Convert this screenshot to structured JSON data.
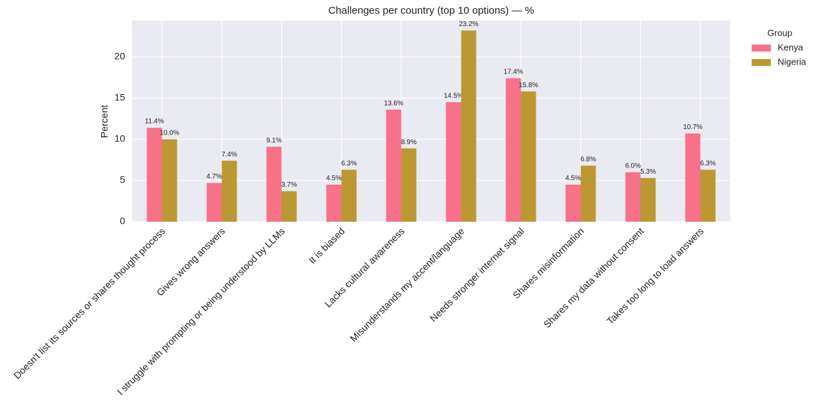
{
  "chart_data": {
    "type": "bar",
    "title": "Challenges per country (top 10 options) — %",
    "ylabel": "Percent",
    "categories": [
      "Doesn't list its sources or shares thought process",
      "Gives wrong answers",
      "I struggle with prompting or being understood by LLMs",
      "It is biased",
      "Lacks cultural awareness",
      "Misunderstands my accent/language",
      "Needs stronger internet signal",
      "Shares misinformation",
      "Shares my data without consent",
      "Takes too long to load answers"
    ],
    "series": [
      {
        "name": "Kenya",
        "color": "#f77189",
        "values": [
          11.4,
          4.7,
          9.1,
          4.5,
          13.6,
          14.5,
          17.4,
          4.5,
          6.0,
          10.7
        ],
        "value_labels": [
          "11.4%",
          "4.7%",
          "9.1%",
          "4.5%",
          "13.6%",
          "14.5%",
          "17.4%",
          "4.5%",
          "6.0%",
          "10.7%"
        ]
      },
      {
        "name": "Nigeria",
        "color": "#bb9832",
        "values": [
          10.0,
          7.4,
          3.7,
          6.3,
          8.9,
          23.2,
          15.8,
          6.8,
          5.3,
          6.3
        ],
        "value_labels": [
          "10.0%",
          "7.4%",
          "3.7%",
          "6.3%",
          "8.9%",
          "23.2%",
          "15.8%",
          "6.8%",
          "5.3%",
          "6.3%"
        ]
      }
    ],
    "legend_title": "Group",
    "legend": "outside-right",
    "ylim": [
      0,
      24.4
    ],
    "yticks": [
      0,
      5,
      10,
      15,
      20
    ],
    "grid": true
  }
}
